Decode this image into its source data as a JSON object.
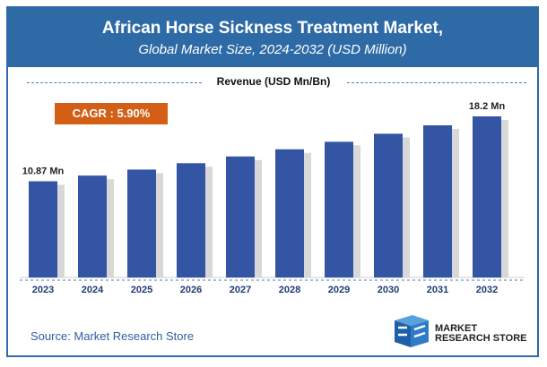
{
  "header": {
    "title": "African Horse Sickness Treatment Market,",
    "subtitle": "Global Market Size, 2024-2032 (USD Million)"
  },
  "cagr": "CAGR : 5.90%",
  "source": "Source: Market Research Store",
  "logo": {
    "line1": "MARKET",
    "line2": "RESEARCH STORE"
  },
  "colors": {
    "header": "#2e6aa6",
    "bar": "#3454a4",
    "cagr": "#d35f16"
  },
  "chart_data": {
    "type": "bar",
    "title": "Revenue (USD Mn/Bn)",
    "categories": [
      "2023",
      "2024",
      "2025",
      "2026",
      "2027",
      "2028",
      "2029",
      "2030",
      "2031",
      "2032"
    ],
    "values": [
      10.87,
      11.51,
      12.19,
      12.91,
      13.67,
      14.48,
      15.33,
      16.24,
      17.19,
      18.2
    ],
    "data_labels": {
      "0": "10.87 Mn",
      "9": "18.2 Mn"
    },
    "ylim": [
      0,
      18.2
    ],
    "grid": false
  }
}
